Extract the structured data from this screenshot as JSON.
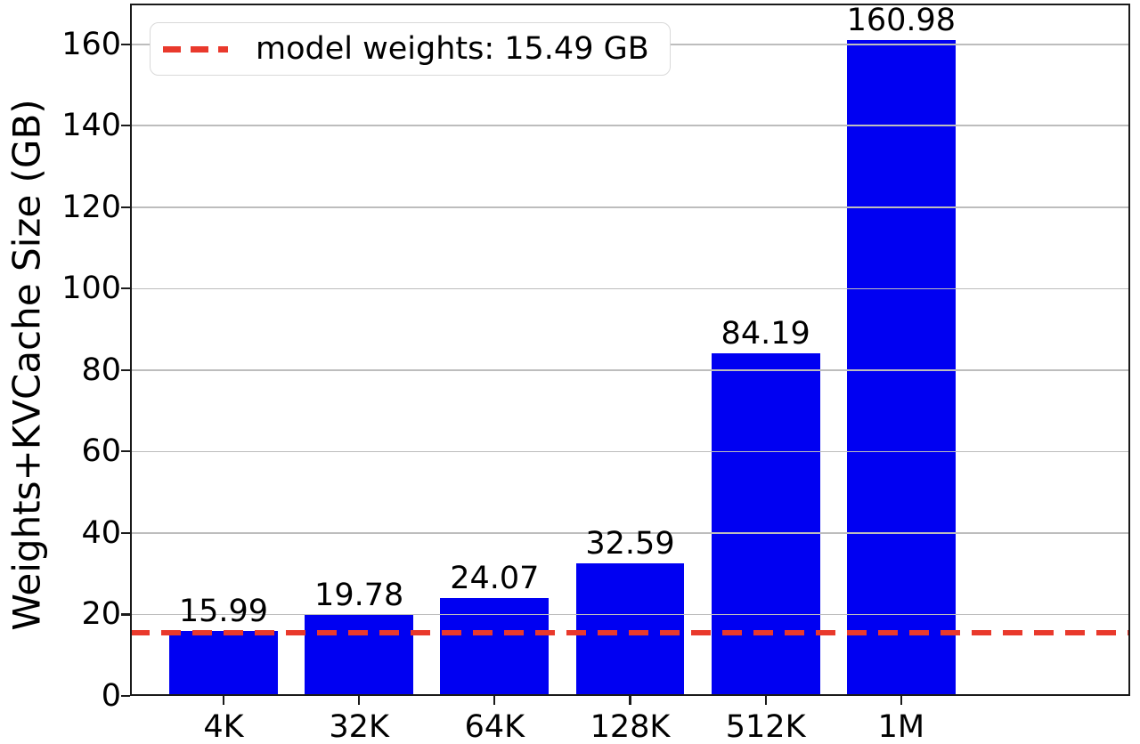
{
  "chart_data": {
    "type": "bar",
    "title": "",
    "categories": [
      "4K",
      "32K",
      "64K",
      "128K",
      "512K",
      "1M"
    ],
    "values": [
      15.99,
      19.78,
      24.07,
      32.59,
      84.19,
      160.98
    ],
    "bar_value_labels": [
      "15.99",
      "19.78",
      "24.07",
      "32.59",
      "84.19",
      "160.98"
    ],
    "xlabel": "",
    "ylabel": "Weights+KVCache Size (GB)",
    "ylim": [
      0,
      170
    ],
    "yticks": [
      0,
      20,
      40,
      60,
      80,
      100,
      120,
      140,
      160
    ],
    "ytick_labels": [
      "0",
      "20",
      "40",
      "60",
      "80",
      "100",
      "120",
      "140",
      "160"
    ],
    "grid": "horizontal",
    "legend_position": "upper-left",
    "bar_color": "#0000f2",
    "grid_color": "#bdbdbd",
    "axis_color": "#1a1a1a",
    "reference_line": {
      "value": 15.49,
      "label": "model weights: 15.49 GB",
      "color": "#e9392c",
      "line_style": "dashed"
    }
  }
}
